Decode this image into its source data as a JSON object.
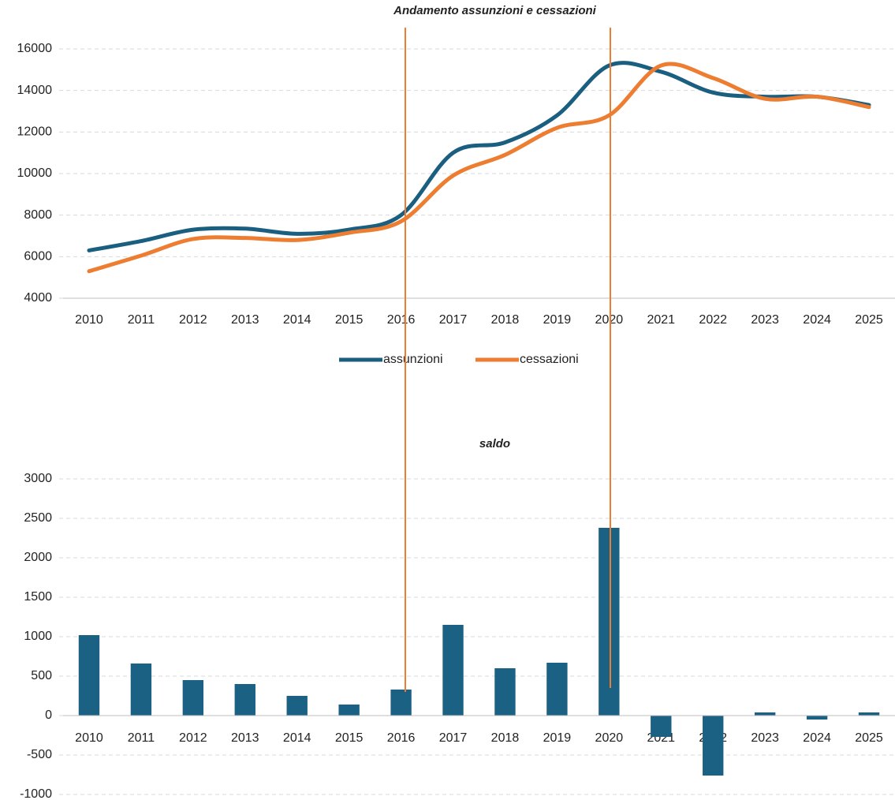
{
  "chart_data": [
    {
      "type": "line",
      "title": "Andamento assunzioni  e cessazioni",
      "categories": [
        "2010",
        "2011",
        "2012",
        "2013",
        "2014",
        "2015",
        "2016",
        "2017",
        "2018",
        "2019",
        "2020",
        "2021",
        "2022",
        "2023",
        "2024",
        "2025"
      ],
      "series": [
        {
          "name": "assunzioni",
          "color": "#1a5e80",
          "values": [
            6300,
            6750,
            7300,
            7350,
            7100,
            7300,
            8000,
            11000,
            11500,
            12800,
            15200,
            14900,
            13900,
            13700,
            13700,
            13300
          ]
        },
        {
          "name": "cessazioni",
          "color": "#ed7d31",
          "values": [
            5300,
            6050,
            6850,
            6900,
            6800,
            7150,
            7700,
            9900,
            10900,
            12200,
            12800,
            15200,
            14600,
            13600,
            13700,
            13200
          ]
        }
      ],
      "ylim": [
        4000,
        16000
      ],
      "yticks": [
        4000,
        6000,
        8000,
        10000,
        12000,
        14000,
        16000
      ],
      "grid": true,
      "legend": "bottom"
    },
    {
      "type": "bar",
      "title": "saldo",
      "categories": [
        "2010",
        "2011",
        "2012",
        "2013",
        "2014",
        "2015",
        "2016",
        "2017",
        "2018",
        "2019",
        "2020",
        "2021",
        "2022",
        "2023",
        "2024",
        "2025"
      ],
      "values": [
        1020,
        660,
        450,
        400,
        250,
        140,
        330,
        1150,
        600,
        670,
        2380,
        -270,
        -760,
        40,
        -50,
        40
      ],
      "color": "#1b6184",
      "ylim": [
        -1000,
        3000
      ],
      "yticks": [
        -1000,
        -500,
        0,
        500,
        1000,
        1500,
        2000,
        2500,
        3000
      ],
      "grid": true
    }
  ]
}
